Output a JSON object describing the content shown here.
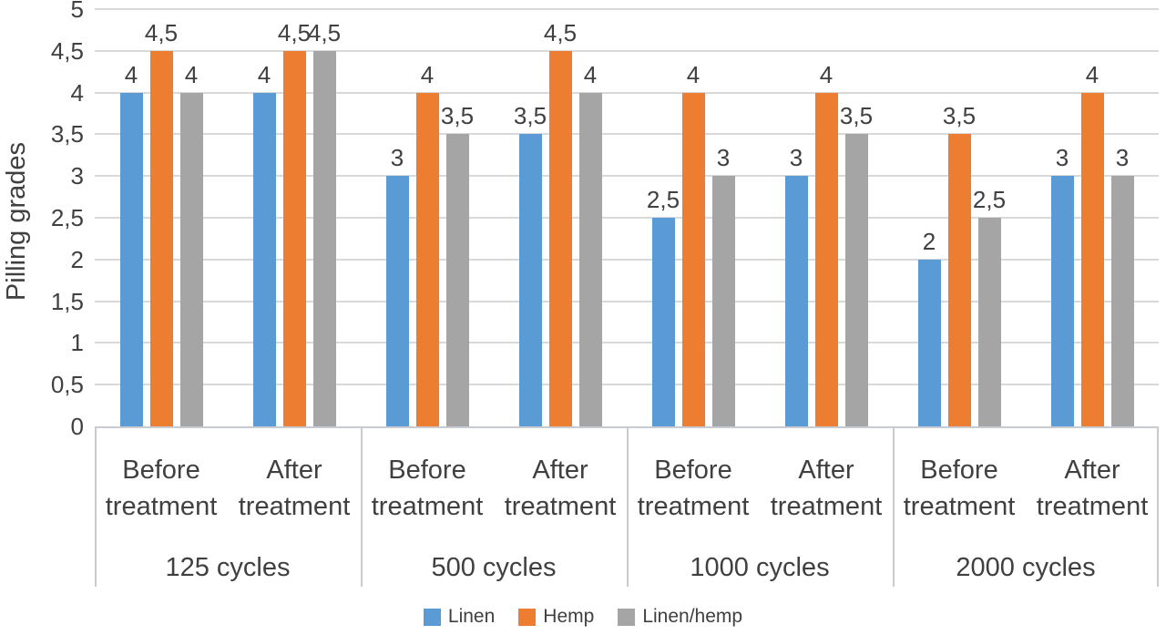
{
  "chart_data": {
    "type": "bar",
    "title": "",
    "xlabel": "",
    "ylabel": "Pilling grades",
    "ylim": [
      0,
      5
    ],
    "ytick_step": 0.5,
    "ytick_labels": [
      "0",
      "0,5",
      "1",
      "1,5",
      "2",
      "2,5",
      "3",
      "3,5",
      "4",
      "4,5",
      "5"
    ],
    "decimal_separator": ",",
    "grid": true,
    "legend_position": "bottom",
    "group_labels": [
      "125 cycles",
      "500 cycles",
      "1000 cycles",
      "2000 cycles"
    ],
    "category_labels": [
      [
        "Before",
        "treatment"
      ],
      [
        "After",
        "treatment"
      ],
      [
        "Before",
        "treatment"
      ],
      [
        "After",
        "treatment"
      ],
      [
        "Before",
        "treatment"
      ],
      [
        "After",
        "treatment"
      ],
      [
        "Before",
        "treatment"
      ],
      [
        "After",
        "treatment"
      ]
    ],
    "series": [
      {
        "name": "Linen",
        "color": "#5B9BD5",
        "values": [
          4,
          4,
          3,
          3.5,
          2.5,
          3,
          2,
          3
        ],
        "labels": [
          "4",
          "4",
          "3",
          "3,5",
          "2,5",
          "3",
          "2",
          "3"
        ]
      },
      {
        "name": "Hemp",
        "color": "#ED7D31",
        "values": [
          4.5,
          4.5,
          4,
          4.5,
          4,
          4,
          3.5,
          4
        ],
        "labels": [
          "4,5",
          "4,5",
          "4",
          "4,5",
          "4",
          "4",
          "3,5",
          "4"
        ]
      },
      {
        "name": "Linen/hemp",
        "color": "#A5A5A5",
        "values": [
          4,
          4.5,
          3.5,
          4,
          3,
          3.5,
          2.5,
          3
        ],
        "labels": [
          "4",
          "4,5",
          "3,5",
          "4",
          "3",
          "3,5",
          "2,5",
          "3"
        ]
      }
    ]
  },
  "legend": {
    "items": [
      {
        "label": "Linen",
        "color": "#5B9BD5"
      },
      {
        "label": "Hemp",
        "color": "#ED7D31"
      },
      {
        "label": "Linen/hemp",
        "color": "#A5A5A5"
      }
    ]
  },
  "colors": {
    "gridline": "#D9D9D9",
    "axis_line": "#C8CBD0",
    "text": "#404040"
  }
}
